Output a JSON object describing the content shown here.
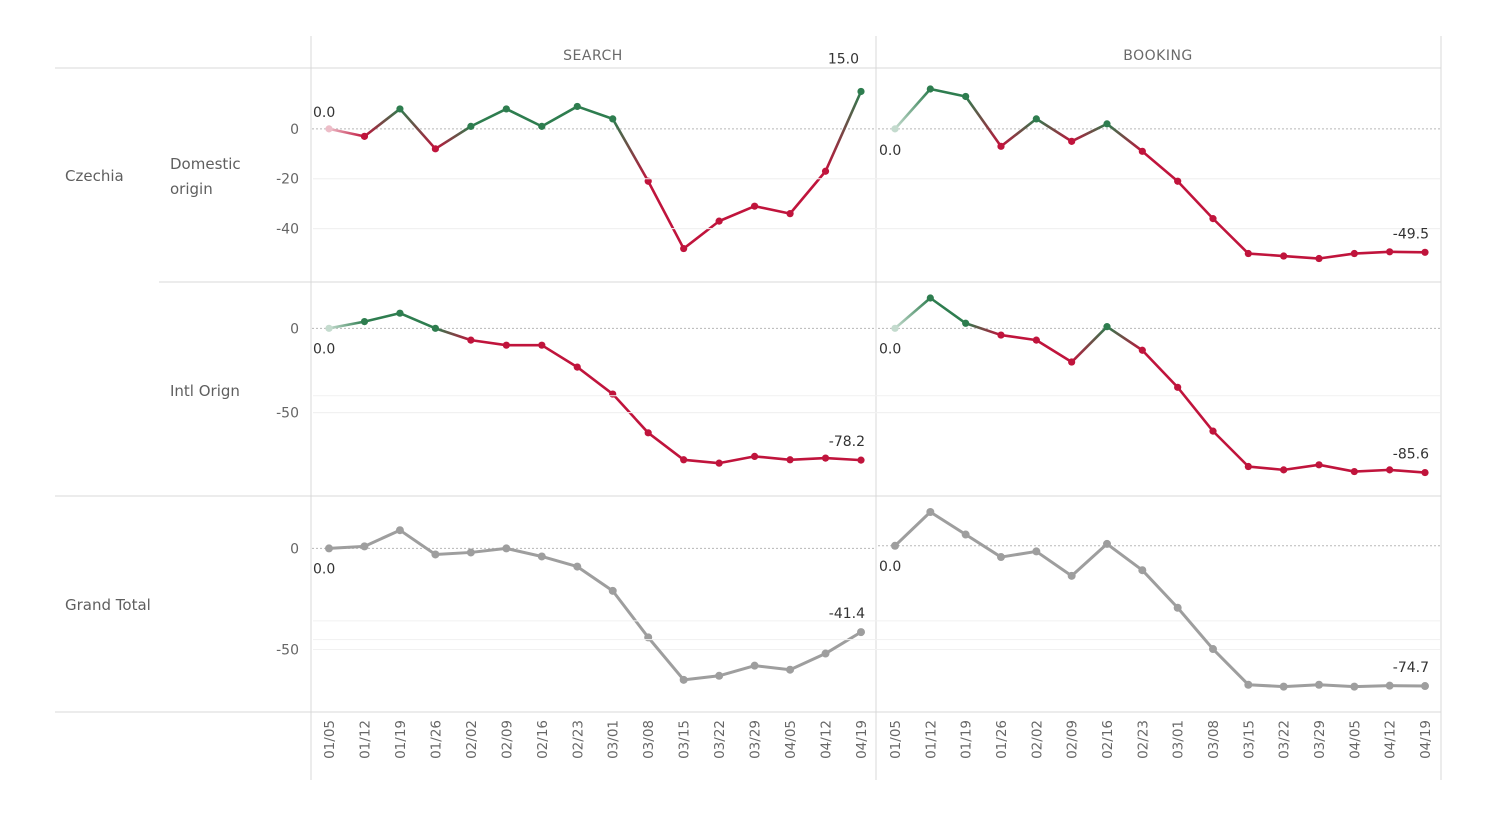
{
  "columns": [
    "SEARCH",
    "BOOKING"
  ],
  "rows": {
    "country": "Czechia",
    "domestic": [
      "Domestic",
      "origin"
    ],
    "intl": "Intl Orign",
    "total": "Grand Total"
  },
  "x_dates": [
    "01/05",
    "01/12",
    "01/19",
    "01/26",
    "02/02",
    "02/09",
    "02/16",
    "02/23",
    "03/01",
    "03/08",
    "03/15",
    "03/22",
    "03/29",
    "04/05",
    "04/12",
    "04/19"
  ],
  "colors": {
    "positive": "#2e7d4f",
    "negative": "#c0143c",
    "total": "#9e9e9e"
  },
  "chart_data": [
    {
      "type": "line",
      "panel": "search-domestic",
      "x": [
        "01/05",
        "01/12",
        "01/19",
        "01/26",
        "02/02",
        "02/09",
        "02/16",
        "02/23",
        "03/01",
        "03/08",
        "03/15",
        "03/22",
        "03/29",
        "04/05",
        "04/12",
        "04/19"
      ],
      "values": [
        0.0,
        -3,
        8,
        -8,
        1,
        8,
        1,
        9,
        4,
        -21,
        -48,
        -37,
        -31,
        -34,
        -17,
        15.0
      ],
      "ylim": [
        -55,
        18
      ],
      "yticks": [
        0,
        -20,
        -40
      ],
      "labels": [
        "0.0",
        "15.0"
      ]
    },
    {
      "type": "line",
      "panel": "booking-domestic",
      "x": [
        "01/05",
        "01/12",
        "01/19",
        "01/26",
        "02/02",
        "02/09",
        "02/16",
        "02/23",
        "03/01",
        "03/08",
        "03/15",
        "03/22",
        "03/29",
        "04/05",
        "04/12",
        "04/19"
      ],
      "values": [
        0.0,
        16,
        13,
        -7,
        4,
        -5,
        2,
        -9,
        -21,
        -36,
        -50,
        -51,
        -52,
        -50,
        -49.3,
        -49.5
      ],
      "ylim": [
        -55,
        18
      ],
      "yticks": [],
      "labels": [
        "0.0",
        "-49.5"
      ]
    },
    {
      "type": "line",
      "panel": "search-intl",
      "x": [
        "01/05",
        "01/12",
        "01/19",
        "01/26",
        "02/02",
        "02/09",
        "02/16",
        "02/23",
        "03/01",
        "03/08",
        "03/15",
        "03/22",
        "03/29",
        "04/05",
        "04/12",
        "04/19"
      ],
      "values": [
        0.0,
        4,
        9,
        0,
        -7,
        -10,
        -10,
        -23,
        -39,
        -62,
        -78,
        -80,
        -76,
        -78,
        -77,
        -78.2
      ],
      "ylim": [
        -90,
        18
      ],
      "yticks": [
        0,
        -50
      ],
      "labels": [
        "0.0",
        "-78.2"
      ]
    },
    {
      "type": "line",
      "panel": "booking-intl",
      "x": [
        "01/05",
        "01/12",
        "01/19",
        "01/26",
        "02/02",
        "02/09",
        "02/16",
        "02/23",
        "03/01",
        "03/08",
        "03/15",
        "03/22",
        "03/29",
        "04/05",
        "04/12",
        "04/19"
      ],
      "values": [
        0.0,
        18,
        3,
        -4,
        -7,
        -20,
        1,
        -13,
        -35,
        -61,
        -82,
        -84,
        -81,
        -85,
        -84,
        -85.6
      ],
      "ylim": [
        -90,
        18
      ],
      "yticks": [],
      "labels": [
        "0.0",
        "-85.6"
      ]
    },
    {
      "type": "line",
      "panel": "search-total",
      "x": [
        "01/05",
        "01/12",
        "01/19",
        "01/26",
        "02/02",
        "02/09",
        "02/16",
        "02/23",
        "03/01",
        "03/08",
        "03/15",
        "03/22",
        "03/29",
        "04/05",
        "04/12",
        "04/19"
      ],
      "values": [
        0.0,
        1,
        9,
        -3,
        -2,
        0,
        -4,
        -9,
        -21,
        -44,
        -65,
        -63,
        -58,
        -60,
        -52,
        -41.4
      ],
      "ylim": [
        -73,
        18
      ],
      "yticks": [
        0,
        -50
      ],
      "labels": [
        "0.0",
        "-41.4"
      ]
    },
    {
      "type": "line",
      "panel": "booking-total",
      "x": [
        "01/05",
        "01/12",
        "01/19",
        "01/26",
        "02/02",
        "02/09",
        "02/16",
        "02/23",
        "03/01",
        "03/08",
        "03/15",
        "03/22",
        "03/29",
        "04/05",
        "04/12",
        "04/19"
      ],
      "values": [
        0.0,
        18,
        6,
        -6,
        -3,
        -16,
        1,
        -13,
        -33,
        -55,
        -74,
        -75,
        -74,
        -75,
        -74.5,
        -74.7
      ],
      "ylim": [
        -80,
        18
      ],
      "yticks": [],
      "labels": [
        "0.0",
        "-74.7"
      ]
    }
  ]
}
